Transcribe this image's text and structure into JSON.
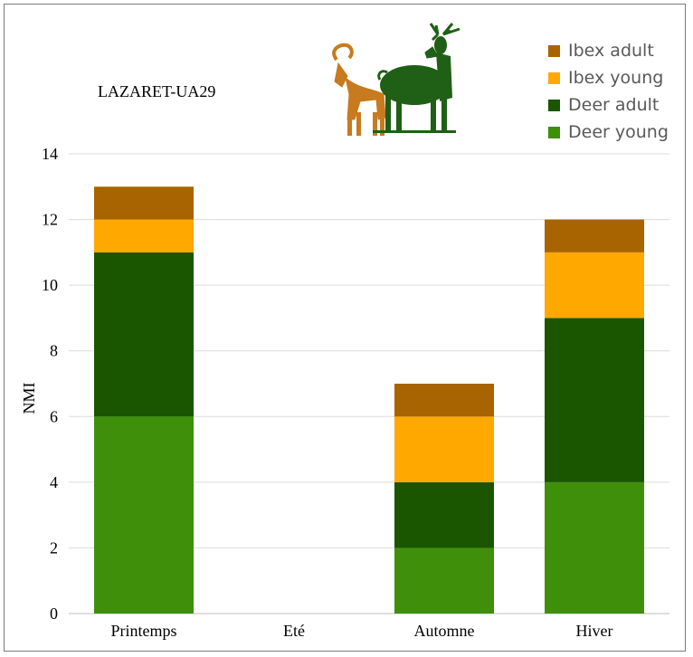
{
  "chart_data": {
    "type": "bar",
    "stacked": true,
    "title": "LAZARET-UA29",
    "ylabel": "NMI",
    "xlabel": "",
    "ylim": [
      0,
      14
    ],
    "yticks": [
      0,
      2,
      4,
      6,
      8,
      10,
      12,
      14
    ],
    "grid": true,
    "legend_position": "top-right",
    "categories": [
      "Printemps",
      "Eté",
      "Automne",
      "Hiver"
    ],
    "series": [
      {
        "name": "Deer young",
        "color": "#3f8f0b",
        "values": [
          6,
          0,
          2,
          4
        ]
      },
      {
        "name": "Deer adult",
        "color": "#1a5600",
        "values": [
          5,
          0,
          2,
          5
        ]
      },
      {
        "name": "Ibex young",
        "color": "#ffa800",
        "values": [
          1,
          0,
          2,
          2
        ]
      },
      {
        "name": "Ibex adult",
        "color": "#a86400",
        "values": [
          1,
          0,
          1,
          1
        ]
      }
    ],
    "legend_order": [
      "Ibex adult",
      "Ibex young",
      "Deer adult",
      "Deer young"
    ],
    "illustration": {
      "icons": [
        "ibex-icon",
        "deer-icon"
      ],
      "ibex_color": "#c87a1e",
      "deer_color": "#1f5f16"
    }
  }
}
